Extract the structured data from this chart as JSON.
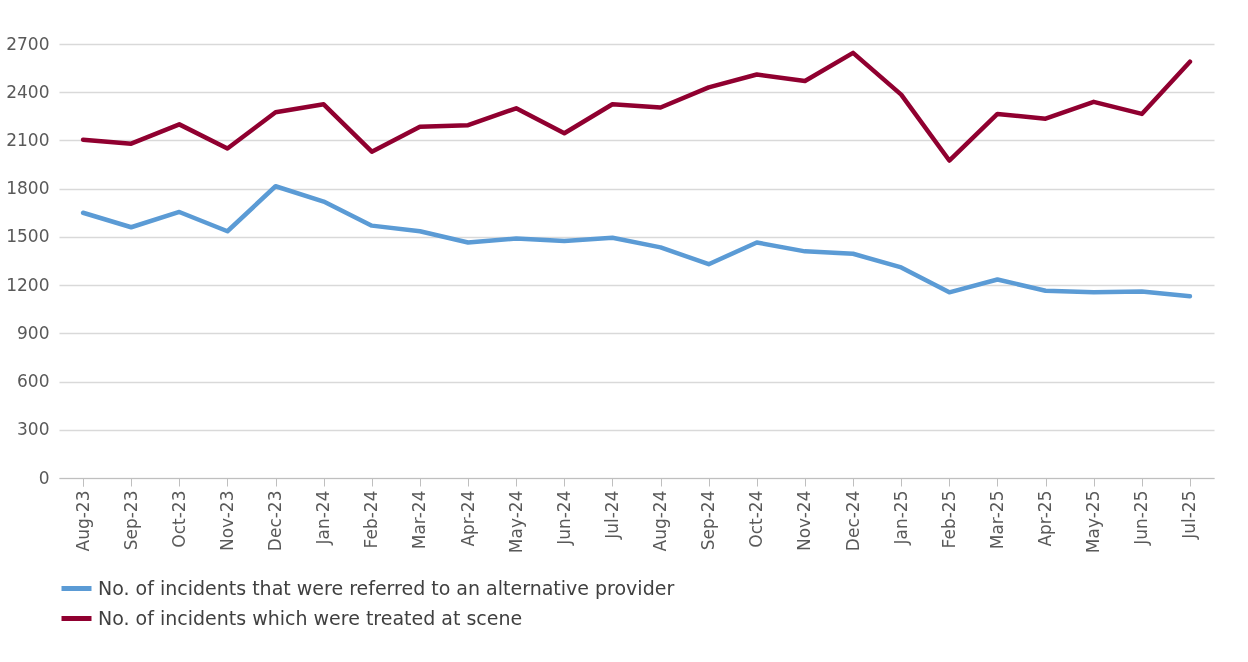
{
  "chart_data": {
    "type": "line",
    "categories": [
      "Aug-23",
      "Sep-23",
      "Oct-23",
      "Nov-23",
      "Dec-23",
      "Jan-24",
      "Feb-24",
      "Mar-24",
      "Apr-24",
      "May-24",
      "Jun-24",
      "Jul-24",
      "Aug-24",
      "Sep-24",
      "Oct-24",
      "Nov-24",
      "Dec-24",
      "Jan-25",
      "Feb-25",
      "Mar-25",
      "Apr-25",
      "May-25",
      "Jun-25",
      "Jul-25"
    ],
    "series": [
      {
        "name": "No. of incidents that were referred to an alternative provider",
        "color": "#5b9bd5",
        "values": [
          1650,
          1560,
          1655,
          1535,
          1815,
          1720,
          1570,
          1535,
          1465,
          1490,
          1475,
          1495,
          1435,
          1330,
          1465,
          1410,
          1395,
          1310,
          1155,
          1235,
          1165,
          1155,
          1160,
          1130
        ]
      },
      {
        "name": "No. of incidents which were treated at scene",
        "color": "#900030",
        "values": [
          2105,
          2080,
          2200,
          2050,
          2275,
          2325,
          2030,
          2185,
          2195,
          2300,
          2145,
          2325,
          2305,
          2430,
          2510,
          2470,
          2645,
          2385,
          1975,
          2265,
          2235,
          2340,
          2265,
          2590
        ]
      }
    ],
    "ylim": [
      0,
      2700
    ],
    "yticks": [
      0,
      300,
      600,
      900,
      1200,
      1500,
      1800,
      2100,
      2400,
      2700
    ],
    "grid": "y",
    "legend": "bottom",
    "marker": "none",
    "line_style": "solid"
  }
}
